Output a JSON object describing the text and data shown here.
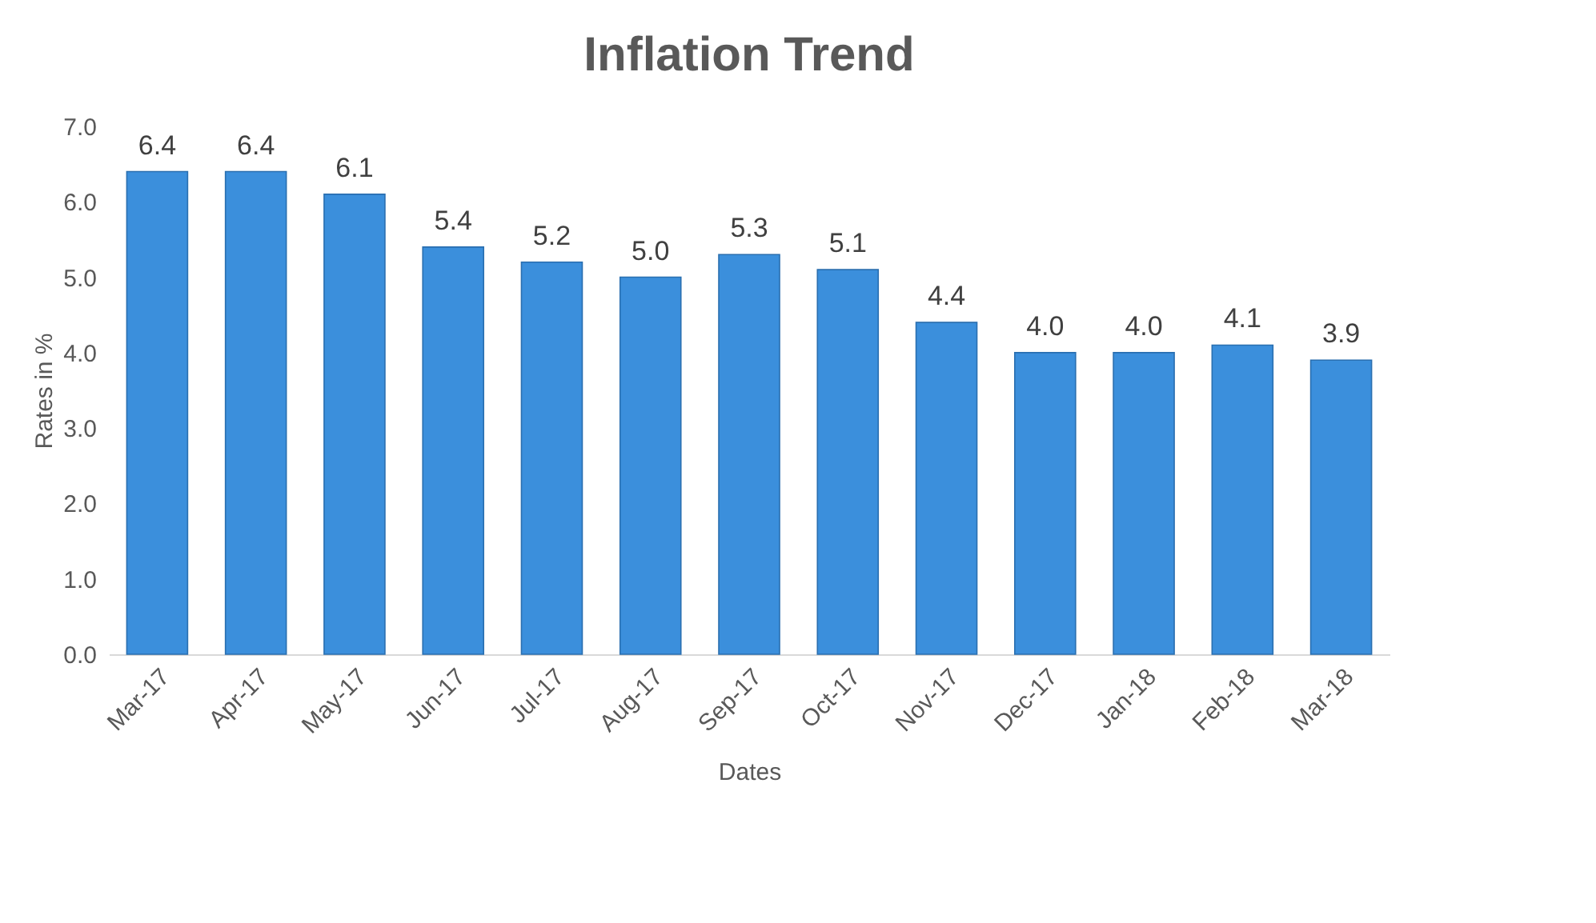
{
  "chart_data": {
    "type": "bar",
    "title": "Inflation Trend",
    "xlabel": "Dates",
    "ylabel": "Rates in %",
    "categories": [
      "Mar-17",
      "Apr-17",
      "May-17",
      "Jun-17",
      "Jul-17",
      "Aug-17",
      "Sep-17",
      "Oct-17",
      "Nov-17",
      "Dec-17",
      "Jan-18",
      "Feb-18",
      "Mar-18"
    ],
    "values": [
      6.4,
      6.4,
      6.1,
      5.4,
      5.2,
      5.0,
      5.3,
      5.1,
      4.4,
      4.0,
      4.0,
      4.1,
      3.9
    ],
    "value_labels": [
      "6.4",
      "6.4",
      "6.1",
      "5.4",
      "5.2",
      "5.0",
      "5.3",
      "5.1",
      "4.4",
      "4.0",
      "4.0",
      "4.1",
      "3.9"
    ],
    "color": "#3b8fdc",
    "ylim": [
      0,
      7
    ],
    "yticks": [
      {
        "value": 0,
        "label": "0.0"
      },
      {
        "value": 1,
        "label": "1.0"
      },
      {
        "value": 2,
        "label": "2.0"
      },
      {
        "value": 3,
        "label": "3.0"
      },
      {
        "value": 4,
        "label": "4.0"
      },
      {
        "value": 5,
        "label": "5.0"
      },
      {
        "value": 6,
        "label": "6.0"
      },
      {
        "value": 7,
        "label": "7.0"
      }
    ],
    "grid": false
  }
}
